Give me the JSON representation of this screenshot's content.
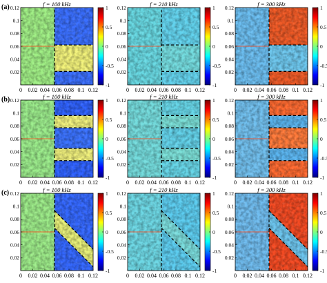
{
  "chart_data": [
    {
      "row_label": "(a)",
      "title": "f = 100 kHz",
      "type": "heatmap",
      "xlim": [
        0,
        0.12
      ],
      "ylim": [
        0,
        0.12
      ],
      "clim": [
        -1,
        1
      ],
      "x_ticks": [
        "0",
        "0.02",
        "0.04",
        "0.06",
        "0.08",
        "0.1",
        "0.12"
      ],
      "y_ticks": [
        "0.02",
        "0.04",
        "0.06",
        "0.08",
        "0.1",
        "0.12"
      ],
      "cbar_ticks": [
        "1",
        "0.5",
        "0",
        "-0.5",
        "-1"
      ],
      "dashed_boundaries": [
        {
          "x": [
            0.056,
            0.056
          ],
          "y": [
            0,
            0.12
          ]
        },
        {
          "x": [
            0.056,
            0.12
          ],
          "y": [
            0.062,
            0.062
          ]
        },
        {
          "x": [
            0.056,
            0.12
          ],
          "y": [
            0.021,
            0.021
          ]
        }
      ]
    },
    {
      "row_label": "",
      "title": "f = 210 kHz",
      "type": "heatmap",
      "xlim": [
        0,
        0.12
      ],
      "ylim": [
        0,
        0.12
      ],
      "clim": [
        -1,
        1
      ],
      "x_ticks": [
        "0",
        "0.02",
        "0.04",
        "0.06",
        "0.08",
        "0.1",
        "0.12"
      ],
      "y_ticks": [
        "0.02",
        "0.04",
        "0.06",
        "0.08",
        "0.1",
        "0.12"
      ],
      "cbar_ticks": [
        "1",
        "0.5",
        "0",
        "-0.5",
        "-1"
      ],
      "dashed_boundaries": [
        {
          "x": [
            0.056,
            0.056
          ],
          "y": [
            0,
            0.12
          ]
        },
        {
          "x": [
            0.056,
            0.12
          ],
          "y": [
            0.062,
            0.062
          ]
        },
        {
          "x": [
            0.056,
            0.12
          ],
          "y": [
            0.021,
            0.021
          ]
        }
      ]
    },
    {
      "row_label": "",
      "title": "f = 300 kHz",
      "type": "heatmap",
      "xlim": [
        0,
        0.12
      ],
      "ylim": [
        0,
        0.12
      ],
      "clim": [
        -1,
        1
      ],
      "x_ticks": [
        "0",
        "0.02",
        "0.04",
        "0.06",
        "0.08",
        "0.1",
        "0.12"
      ],
      "y_ticks": [
        "0.02",
        "0.04",
        "0.06",
        "0.08",
        "0.1",
        "0.12"
      ],
      "cbar_ticks": [
        "1",
        "0.5",
        "0",
        "-0.5",
        "-1"
      ],
      "dashed_boundaries": [
        {
          "x": [
            0.056,
            0.056
          ],
          "y": [
            0,
            0.12
          ]
        },
        {
          "x": [
            0.056,
            0.12
          ],
          "y": [
            0.062,
            0.062
          ]
        },
        {
          "x": [
            0.056,
            0.12
          ],
          "y": [
            0.021,
            0.021
          ]
        }
      ]
    },
    {
      "row_label": "(b)",
      "title": "f = 100 kHz",
      "type": "heatmap",
      "xlim": [
        0,
        0.12
      ],
      "ylim": [
        0,
        0.12
      ],
      "clim": [
        -1,
        1
      ],
      "x_ticks": [
        "0",
        "0.02",
        "0.04",
        "0.06",
        "0.08",
        "0.1",
        "0.12"
      ],
      "y_ticks": [
        "0.02",
        "0.04",
        "0.06",
        "0.08",
        "0.1",
        "0.12"
      ],
      "cbar_ticks": [
        "1",
        "0.5",
        "0",
        "-0.5",
        "-1"
      ],
      "dashed_boundaries": [
        {
          "x": [
            0.056,
            0.056
          ],
          "y": [
            0,
            0.12
          ]
        },
        {
          "x": [
            0.056,
            0.12
          ],
          "y": [
            0.096,
            0.096
          ]
        },
        {
          "x": [
            0.056,
            0.12
          ],
          "y": [
            0.077,
            0.077
          ]
        },
        {
          "x": [
            0.056,
            0.12
          ],
          "y": [
            0.045,
            0.045
          ]
        },
        {
          "x": [
            0.056,
            0.12
          ],
          "y": [
            0.026,
            0.026
          ]
        }
      ]
    },
    {
      "row_label": "",
      "title": "f = 210 kHz",
      "type": "heatmap",
      "xlim": [
        0,
        0.12
      ],
      "ylim": [
        0,
        0.12
      ],
      "clim": [
        -1,
        1
      ],
      "x_ticks": [
        "0",
        "0.02",
        "0.04",
        "0.06",
        "0.08",
        "0.1",
        "0.12"
      ],
      "y_ticks": [
        "0.02",
        "0.04",
        "0.06",
        "0.08",
        "0.1",
        "0.12"
      ],
      "cbar_ticks": [
        "1",
        "0.5",
        "0",
        "-0.5",
        "-1"
      ],
      "dashed_boundaries": [
        {
          "x": [
            0.056,
            0.056
          ],
          "y": [
            0,
            0.12
          ]
        },
        {
          "x": [
            0.056,
            0.12
          ],
          "y": [
            0.096,
            0.096
          ]
        },
        {
          "x": [
            0.056,
            0.12
          ],
          "y": [
            0.077,
            0.077
          ]
        },
        {
          "x": [
            0.056,
            0.12
          ],
          "y": [
            0.045,
            0.045
          ]
        },
        {
          "x": [
            0.056,
            0.12
          ],
          "y": [
            0.026,
            0.026
          ]
        }
      ]
    },
    {
      "row_label": "",
      "title": "f = 300 kHz",
      "type": "heatmap",
      "xlim": [
        0,
        0.12
      ],
      "ylim": [
        0,
        0.12
      ],
      "clim": [
        -1,
        1
      ],
      "x_ticks": [
        "0",
        "0.02",
        "0.04",
        "0.06",
        "0.08",
        "0.1",
        "0.12"
      ],
      "y_ticks": [
        "0.02",
        "0.04",
        "0.06",
        "0.08",
        "0.1",
        "0.12"
      ],
      "cbar_ticks": [
        "1",
        "0.5",
        "0",
        "-0.5",
        "-1"
      ],
      "dashed_boundaries": [
        {
          "x": [
            0.056,
            0.056
          ],
          "y": [
            0,
            0.12
          ]
        },
        {
          "x": [
            0.056,
            0.12
          ],
          "y": [
            0.096,
            0.096
          ]
        },
        {
          "x": [
            0.056,
            0.12
          ],
          "y": [
            0.077,
            0.077
          ]
        },
        {
          "x": [
            0.056,
            0.12
          ],
          "y": [
            0.045,
            0.045
          ]
        },
        {
          "x": [
            0.056,
            0.12
          ],
          "y": [
            0.026,
            0.026
          ]
        }
      ]
    },
    {
      "row_label": "(c)",
      "title": "f = 100 kHz",
      "type": "heatmap",
      "xlim": [
        0,
        0.12
      ],
      "ylim": [
        0,
        0.12
      ],
      "clim": [
        -1,
        1
      ],
      "x_ticks": [
        "0",
        "0.02",
        "0.04",
        "0.06",
        "0.08",
        "0.1",
        "0.12"
      ],
      "y_ticks": [
        "0.02",
        "0.04",
        "0.06",
        "0.08",
        "0.1",
        "0.12"
      ],
      "cbar_ticks": [
        "1",
        "0.5",
        "0",
        "-0.5",
        "-1"
      ],
      "dashed_boundaries": [
        {
          "x": [
            0.056,
            0.056
          ],
          "y": [
            0,
            0.12
          ]
        },
        {
          "x": [
            0.056,
            0.12
          ],
          "y": [
            0.093,
            0.033
          ]
        },
        {
          "x": [
            0.056,
            0.12
          ],
          "y": [
            0.066,
            0.006
          ]
        }
      ]
    },
    {
      "row_label": "",
      "title": "f = 210 kHz",
      "type": "heatmap",
      "xlim": [
        0,
        0.12
      ],
      "ylim": [
        0,
        0.12
      ],
      "clim": [
        -1,
        1
      ],
      "x_ticks": [
        "0",
        "0.02",
        "0.04",
        "0.06",
        "0.08",
        "0.1",
        "0.12"
      ],
      "y_ticks": [
        "0.02",
        "0.04",
        "0.06",
        "0.08",
        "0.1",
        "0.12"
      ],
      "cbar_ticks": [
        "1",
        "0.5",
        "0",
        "-0.5",
        "-1"
      ],
      "dashed_boundaries": [
        {
          "x": [
            0.056,
            0.056
          ],
          "y": [
            0,
            0.12
          ]
        },
        {
          "x": [
            0.056,
            0.12
          ],
          "y": [
            0.093,
            0.033
          ]
        },
        {
          "x": [
            0.056,
            0.12
          ],
          "y": [
            0.066,
            0.006
          ]
        }
      ]
    },
    {
      "row_label": "",
      "title": "f = 300 kHz",
      "type": "heatmap",
      "xlim": [
        0,
        0.12
      ],
      "ylim": [
        0,
        0.12
      ],
      "clim": [
        -1,
        1
      ],
      "x_ticks": [
        "0",
        "0.02",
        "0.04",
        "0.06",
        "0.08",
        "0.1",
        "0.12"
      ],
      "y_ticks": [
        "0.02",
        "0.04",
        "0.06",
        "0.08",
        "0.1",
        "0.12"
      ],
      "cbar_ticks": [
        "1",
        "0.5",
        "0",
        "-0.5",
        "-1"
      ],
      "dashed_boundaries": [
        {
          "x": [
            0.056,
            0.056
          ],
          "y": [
            0,
            0.12
          ]
        },
        {
          "x": [
            0.056,
            0.12
          ],
          "y": [
            0.093,
            0.033
          ]
        },
        {
          "x": [
            0.056,
            0.12
          ],
          "y": [
            0.066,
            0.006
          ]
        }
      ]
    }
  ]
}
